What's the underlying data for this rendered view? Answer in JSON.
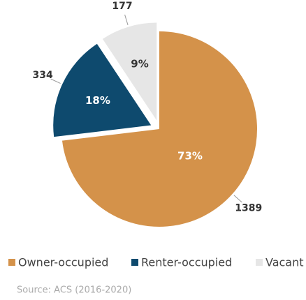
{
  "chart_data": {
    "type": "pie",
    "categories": [
      "Owner-occupied",
      "Renter-occupied",
      "Vacant"
    ],
    "values": [
      1389,
      334,
      177
    ],
    "percent_labels": [
      "73%",
      "18%",
      "9%"
    ],
    "colors": [
      "#d4924a",
      "#0e4a6e",
      "#e6e6e6"
    ],
    "legend": "bottom",
    "source": "Source: ACS (2016-2020)"
  }
}
